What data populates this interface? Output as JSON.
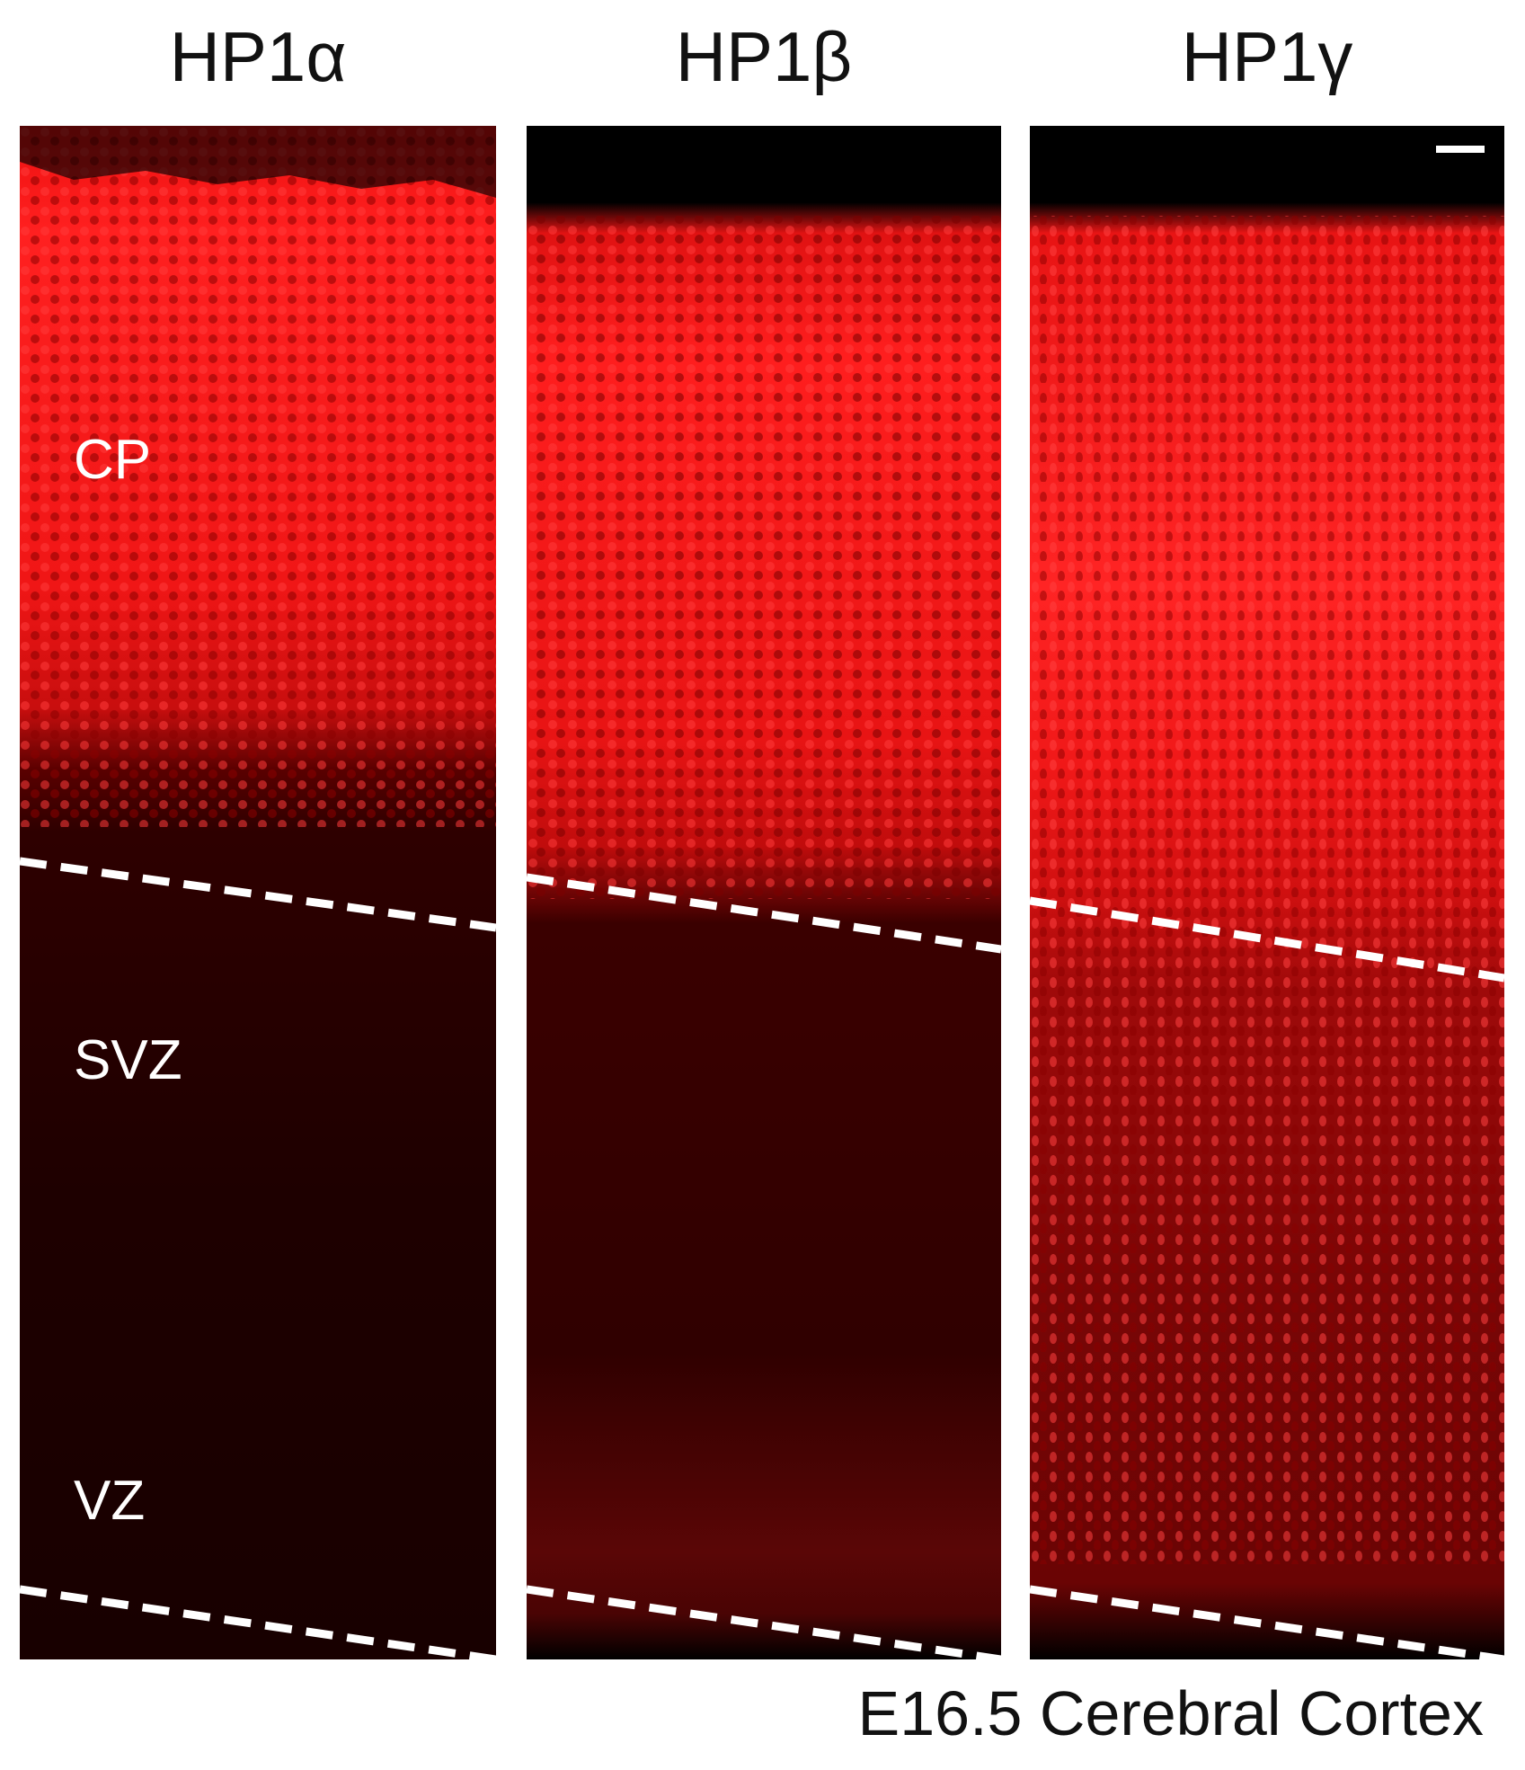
{
  "figure": {
    "columns": [
      {
        "title": "HP1α"
      },
      {
        "title": "HP1β"
      },
      {
        "title": "HP1γ"
      }
    ],
    "zones": {
      "cp": "CP",
      "svz": "SVZ",
      "vz": "VZ"
    },
    "caption": "E16.5 Cerebral Cortex",
    "stain_color": "#ff1a1a",
    "background_color": "#000000"
  }
}
